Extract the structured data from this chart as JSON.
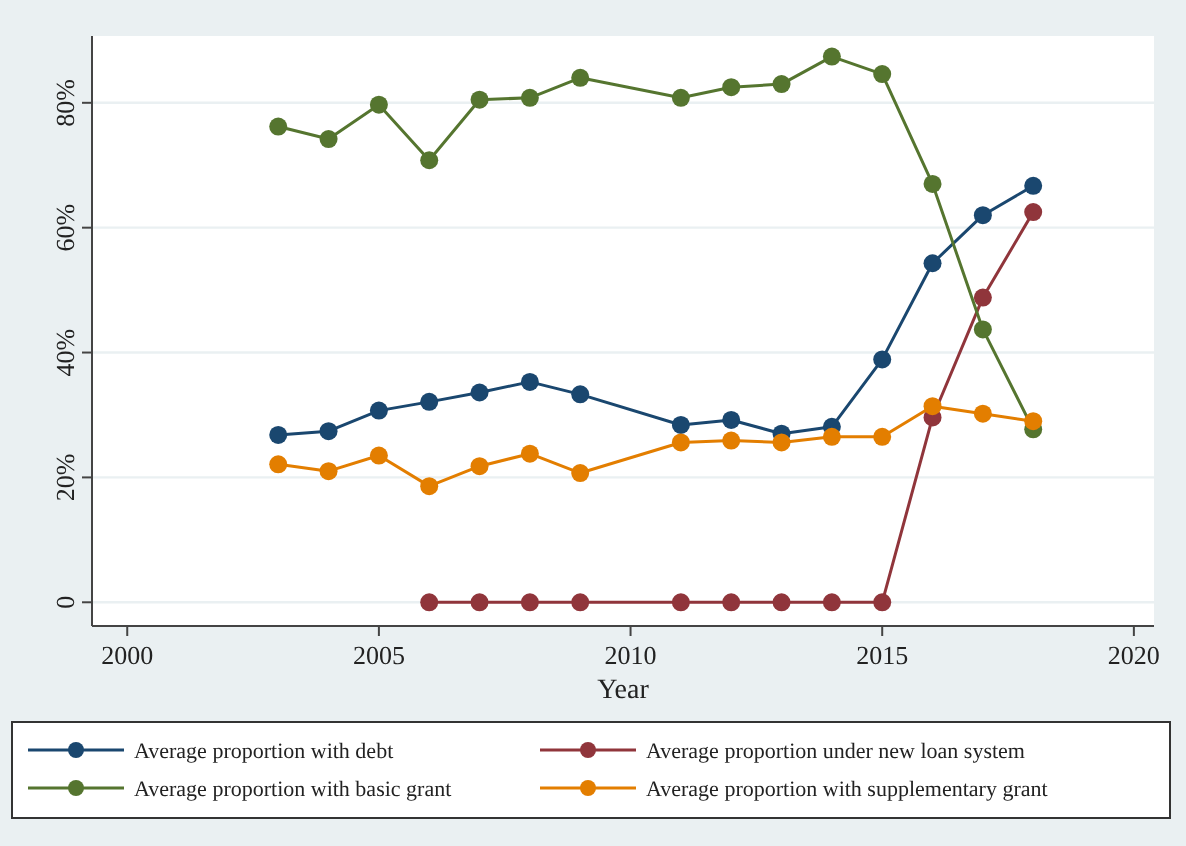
{
  "chart_data": {
    "type": "line",
    "xlabel": "Year",
    "x": [
      2003,
      2004,
      2005,
      2006,
      2007,
      2008,
      2009,
      2011,
      2012,
      2013,
      2014,
      2015,
      2016,
      2017,
      2018
    ],
    "xlim": [
      1999.3,
      2020.4
    ],
    "xticks": [
      2000,
      2005,
      2010,
      2015,
      2020
    ],
    "ylim": [
      -3.8,
      90.7
    ],
    "yticks": [
      {
        "value": 0,
        "label": "0"
      },
      {
        "value": 20,
        "label": "20%"
      },
      {
        "value": 40,
        "label": "40%"
      },
      {
        "value": 60,
        "label": "60%"
      },
      {
        "value": 80,
        "label": "80%"
      }
    ],
    "grid": "y",
    "marker": "circle",
    "legend": "bottom",
    "series": [
      {
        "name": "Average proportion with debt",
        "color": "#1a476f",
        "values": [
          26.8,
          27.4,
          30.7,
          32.1,
          33.6,
          35.3,
          33.3,
          28.4,
          29.2,
          27.0,
          28.1,
          38.9,
          54.3,
          62.0,
          66.7
        ]
      },
      {
        "name": "Average proportion under new loan system",
        "color": "#90353b",
        "values": [
          null,
          null,
          null,
          0,
          0,
          0,
          0,
          0,
          0,
          0,
          0,
          0,
          29.6,
          48.8,
          62.5
        ]
      },
      {
        "name": "Average proportion with basic grant",
        "color": "#55752f",
        "values": [
          76.2,
          74.2,
          79.7,
          70.8,
          80.5,
          80.8,
          84.0,
          80.8,
          82.5,
          83.0,
          87.4,
          84.6,
          67.0,
          43.7,
          27.7
        ]
      },
      {
        "name": "Average proportion with supplementary grant",
        "color": "#e37e00",
        "values": [
          22.1,
          21.0,
          23.5,
          18.6,
          21.8,
          23.8,
          20.7,
          25.6,
          25.9,
          25.6,
          26.5,
          26.5,
          31.4,
          30.2,
          29.0
        ]
      }
    ]
  }
}
